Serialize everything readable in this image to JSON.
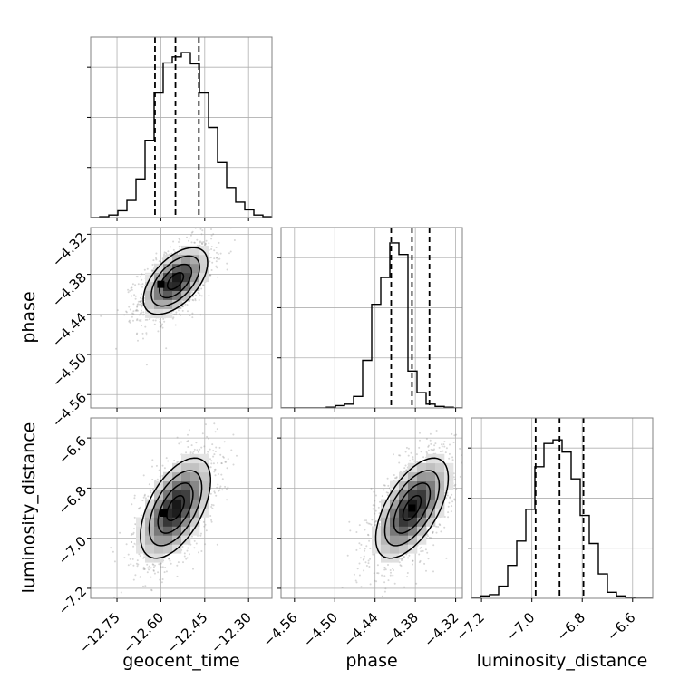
{
  "chart_data": {
    "type": "corner",
    "parameters": [
      "geocent_time",
      "phase",
      "luminosity_distance"
    ],
    "colors": {
      "line": "#000000",
      "grid": "#b0b0b0",
      "frame": "#808080",
      "scatter": "#8c8c8c",
      "hist_fill_dark": "#000000"
    },
    "panels": [
      {
        "id": "hist-geocent_time",
        "kind": "hist1d",
        "x": "geocent_time",
        "xlim": [
          -12.84,
          -12.22
        ],
        "xticks": [
          -12.75,
          -12.6,
          -12.45,
          -12.3
        ],
        "xtick_labels": [
          "−12.75",
          "−12.60",
          "−12.45",
          "−12.30"
        ],
        "bins_from": -12.84,
        "bin_width": 0.031,
        "counts": [
          0,
          1,
          3,
          8,
          20,
          45,
          90,
          145,
          180,
          187,
          192,
          179,
          145,
          105,
          64,
          35,
          18,
          9,
          3,
          1
        ],
        "ymax": 210,
        "quantiles": [
          -12.62,
          -12.55,
          -12.47
        ]
      },
      {
        "id": "hist-phase",
        "kind": "hist1d",
        "x": "phase",
        "xlim": [
          -4.58,
          -4.31
        ],
        "xticks": [
          -4.56,
          -4.5,
          -4.44,
          -4.38,
          -4.32
        ],
        "xtick_labels": [
          "−4.56",
          "−4.50",
          "−4.44",
          "−4.38",
          "−4.32"
        ],
        "bins_from": -4.58,
        "bin_width": 0.0135,
        "counts": [
          0,
          0,
          0,
          0,
          0,
          1,
          3,
          5,
          15,
          62,
          135,
          170,
          215,
          200,
          48,
          20,
          5,
          2,
          1,
          0
        ],
        "ymax": 235,
        "quantiles": [
          -4.416,
          -4.385,
          -4.359
        ]
      },
      {
        "id": "hist-luminosity_distance",
        "kind": "hist1d",
        "x": "luminosity_distance",
        "xlim": [
          -7.24,
          -6.52
        ],
        "xticks": [
          -7.2,
          -7.0,
          -6.8,
          -6.6
        ],
        "xtick_labels": [
          "−7.2",
          "−7.0",
          "−6.8",
          "−6.6"
        ],
        "bins_from": -7.24,
        "bin_width": 0.036,
        "counts": [
          1,
          2,
          3,
          10,
          27,
          47,
          73,
          108,
          127,
          130,
          120,
          98,
          68,
          45,
          20,
          5,
          2,
          1,
          0,
          0
        ],
        "ymax": 148,
        "quantiles": [
          -6.985,
          -6.89,
          -6.795
        ]
      },
      {
        "id": "hist2d-geocent_time-phase",
        "kind": "hist2d",
        "x": "geocent_time",
        "y": "phase",
        "xlim": [
          -12.84,
          -12.22
        ],
        "ylim": [
          -4.58,
          -4.31
        ],
        "yticks": [
          -4.56,
          -4.5,
          -4.44,
          -4.38,
          -4.32
        ],
        "ytick_labels": [
          "−4.56",
          "−4.50",
          "−4.44",
          "−4.38",
          "−4.32"
        ],
        "mean": [
          -12.55,
          -4.39
        ],
        "sigma": [
          0.055,
          0.025
        ],
        "corr": 0.55,
        "peak_marker": [
          -12.6,
          -4.395
        ]
      },
      {
        "id": "hist2d-geocent_time-luminosity_distance",
        "kind": "hist2d",
        "x": "geocent_time",
        "y": "luminosity_distance",
        "xlim": [
          -12.84,
          -12.22
        ],
        "ylim": [
          -7.24,
          -6.52
        ],
        "yticks": [
          -7.2,
          -7.0,
          -6.8,
          -6.6
        ],
        "ytick_labels": [
          "−7.2",
          "−7.0",
          "−6.8",
          "−6.6"
        ],
        "mean": [
          -12.55,
          -6.88
        ],
        "sigma": [
          0.06,
          0.1
        ],
        "corr": 0.55,
        "peak_marker": [
          -12.59,
          -6.9
        ]
      },
      {
        "id": "hist2d-phase-luminosity_distance",
        "kind": "hist2d",
        "x": "phase",
        "y": "luminosity_distance",
        "xlim": [
          -4.58,
          -4.31
        ],
        "ylim": [
          -7.24,
          -6.52
        ],
        "mean": [
          -4.385,
          -6.88
        ],
        "sigma": [
          0.027,
          0.1
        ],
        "corr": 0.6,
        "peak_marker": [
          -4.385,
          -6.88
        ]
      }
    ],
    "axis_labels": {
      "x": [
        "geocent_time",
        "phase",
        "luminosity_distance"
      ],
      "y": [
        "phase",
        "luminosity_distance"
      ]
    },
    "contour_levels_sigma": [
      0.5,
      1.0,
      1.5,
      2.0
    ],
    "n_samples": 4000
  }
}
